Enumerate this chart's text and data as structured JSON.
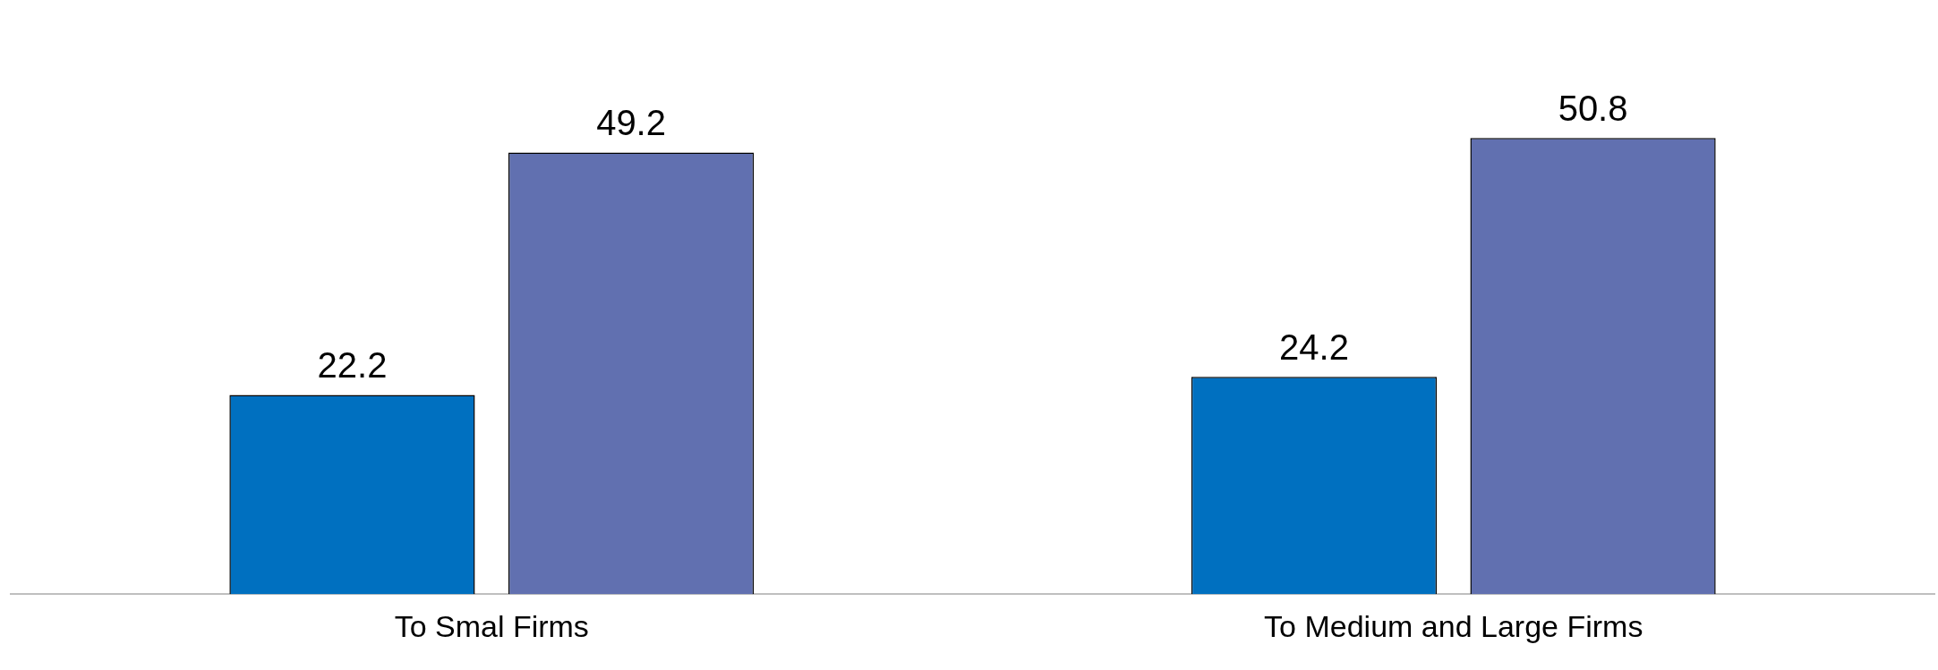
{
  "chart_data": {
    "type": "bar",
    "categories": [
      "To Smal Firms",
      "To Medium and Large Firms"
    ],
    "series": [
      {
        "color": "#0070c0",
        "values": [
          22.2,
          24.2
        ]
      },
      {
        "color": "#6170b0",
        "values": [
          49.2,
          50.8
        ]
      }
    ],
    "data_labels": true,
    "grid": false,
    "legend": false
  }
}
